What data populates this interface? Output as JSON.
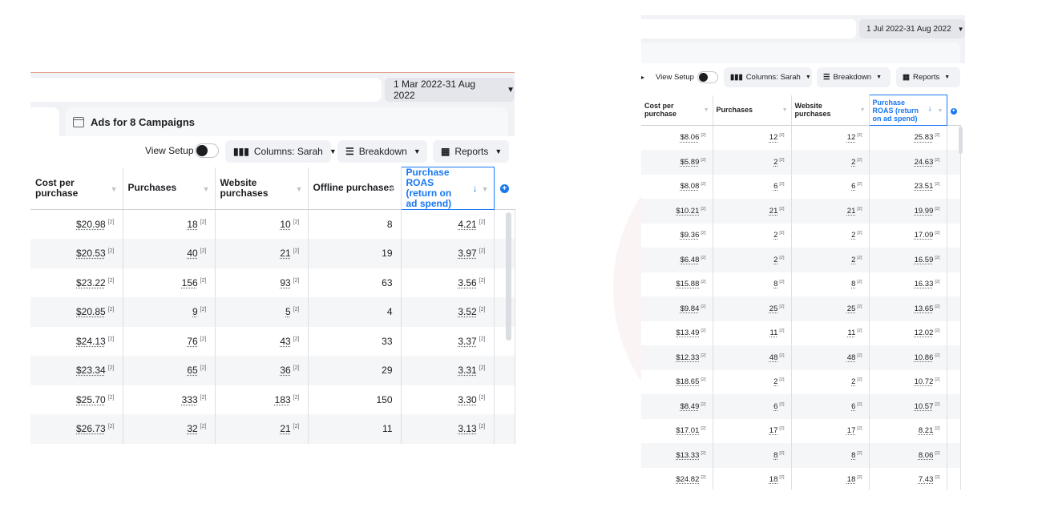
{
  "left": {
    "date_range": "1 Mar 2022-31 Aug 2022",
    "tab_title": "Ads for 8 Campaigns",
    "view_setup": "View Setup",
    "columns_button": "Columns: Sarah",
    "breakdown_button": "Breakdown",
    "reports_button": "Reports",
    "headers": [
      "Cost per purchase",
      "Purchases",
      "Website purchases",
      "Offline purchases",
      "Purchase ROAS (return on ad spend)"
    ],
    "sup": "[2]",
    "rows": [
      {
        "cost": "$20.98",
        "purchases": "18",
        "website": "10",
        "offline": "8",
        "roas": "4.21"
      },
      {
        "cost": "$20.53",
        "purchases": "40",
        "website": "21",
        "offline": "19",
        "roas": "3.97"
      },
      {
        "cost": "$23.22",
        "purchases": "156",
        "website": "93",
        "offline": "63",
        "roas": "3.56"
      },
      {
        "cost": "$20.85",
        "purchases": "9",
        "website": "5",
        "offline": "4",
        "roas": "3.52"
      },
      {
        "cost": "$24.13",
        "purchases": "76",
        "website": "43",
        "offline": "33",
        "roas": "3.37"
      },
      {
        "cost": "$23.34",
        "purchases": "65",
        "website": "36",
        "offline": "29",
        "roas": "3.31"
      },
      {
        "cost": "$25.70",
        "purchases": "333",
        "website": "183",
        "offline": "150",
        "roas": "3.30"
      },
      {
        "cost": "$26.73",
        "purchases": "32",
        "website": "21",
        "offline": "11",
        "roas": "3.13"
      }
    ]
  },
  "right": {
    "date_range": "1 Jul 2022-31 Aug 2022",
    "view_setup": "View Setup",
    "columns_button": "Columns: Sarah",
    "breakdown_button": "Breakdown",
    "reports_button": "Reports",
    "headers": [
      "Cost per purchase",
      "Purchases",
      "Website purchases",
      "Purchase ROAS (return on ad spend)"
    ],
    "sup": "[2]",
    "rows": [
      {
        "cost": "$8.06",
        "purchases": "12",
        "website": "12",
        "roas": "25.83"
      },
      {
        "cost": "$5.89",
        "purchases": "2",
        "website": "2",
        "roas": "24.63"
      },
      {
        "cost": "$8.08",
        "purchases": "6",
        "website": "6",
        "roas": "23.51"
      },
      {
        "cost": "$10.21",
        "purchases": "21",
        "website": "21",
        "roas": "19.99"
      },
      {
        "cost": "$9.36",
        "purchases": "2",
        "website": "2",
        "roas": "17.09"
      },
      {
        "cost": "$6.48",
        "purchases": "2",
        "website": "2",
        "roas": "16.59"
      },
      {
        "cost": "$15.88",
        "purchases": "8",
        "website": "8",
        "roas": "16.33"
      },
      {
        "cost": "$9.84",
        "purchases": "25",
        "website": "25",
        "roas": "13.65"
      },
      {
        "cost": "$13.49",
        "purchases": "11",
        "website": "11",
        "roas": "12.02"
      },
      {
        "cost": "$12.33",
        "purchases": "48",
        "website": "48",
        "roas": "10.86"
      },
      {
        "cost": "$18.65",
        "purchases": "2",
        "website": "2",
        "roas": "10.72"
      },
      {
        "cost": "$8.49",
        "purchases": "6",
        "website": "6",
        "roas": "10.57"
      },
      {
        "cost": "$17.01",
        "purchases": "17",
        "website": "17",
        "roas": "8.21"
      },
      {
        "cost": "$13.33",
        "purchases": "8",
        "website": "8",
        "roas": "8.06"
      },
      {
        "cost": "$24.82",
        "purchases": "18",
        "website": "18",
        "roas": "7.43"
      }
    ]
  }
}
